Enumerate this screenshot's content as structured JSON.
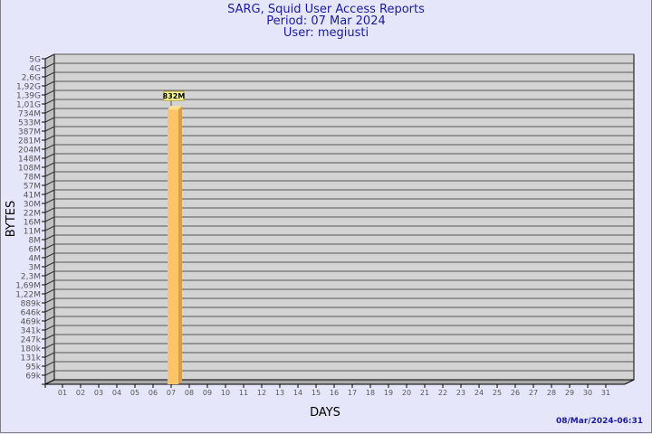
{
  "header": {
    "title": "SARG, Squid User Access Reports",
    "period": "Period: 07 Mar 2024",
    "user": "User: megiusti"
  },
  "footer": {
    "generated": "08/Mar/2024-06:31"
  },
  "colors": {
    "background": "#e6e6fa",
    "plot": "#d3d3d3",
    "bar_front": "#fcc46a",
    "bar_side": "#d9a04a",
    "title": "#1a1aa0"
  },
  "chart_data": {
    "type": "bar",
    "xlabel": "DAYS",
    "ylabel": "BYTES",
    "scale": "log",
    "grid": true,
    "categories": [
      "01",
      "02",
      "03",
      "04",
      "05",
      "06",
      "07",
      "08",
      "09",
      "10",
      "11",
      "12",
      "13",
      "14",
      "15",
      "16",
      "17",
      "18",
      "19",
      "20",
      "21",
      "22",
      "23",
      "24",
      "25",
      "26",
      "27",
      "28",
      "29",
      "30",
      "31"
    ],
    "values": [
      0,
      0,
      0,
      0,
      0,
      0,
      832000000,
      0,
      0,
      0,
      0,
      0,
      0,
      0,
      0,
      0,
      0,
      0,
      0,
      0,
      0,
      0,
      0,
      0,
      0,
      0,
      0,
      0,
      0,
      0,
      0
    ],
    "data_labels": {
      "07": "832M"
    },
    "y_tick_labels": [
      "5G",
      "4G",
      "2,6G",
      "1,92G",
      "1,39G",
      "1,01G",
      "734M",
      "533M",
      "387M",
      "281M",
      "204M",
      "148M",
      "108M",
      "78M",
      "57M",
      "41M",
      "30M",
      "22M",
      "16M",
      "11M",
      "8M",
      "6M",
      "4M",
      "3M",
      "2,3M",
      "1,69M",
      "1,22M",
      "889k",
      "646k",
      "469k",
      "341k",
      "247k",
      "180k",
      "131k",
      "95k",
      "69k"
    ],
    "y_tick_values": [
      5000000000,
      4000000000,
      2600000000,
      1920000000,
      1390000000,
      1010000000,
      734000000,
      533000000,
      387000000,
      281000000,
      204000000,
      148000000,
      108000000,
      78000000,
      57000000,
      41000000,
      30000000,
      22000000,
      16000000,
      11000000,
      8000000,
      6000000,
      4000000,
      3000000,
      2300000,
      1690000,
      1220000,
      889000,
      646000,
      469000,
      341000,
      247000,
      180000,
      131000,
      95000,
      69000
    ]
  }
}
